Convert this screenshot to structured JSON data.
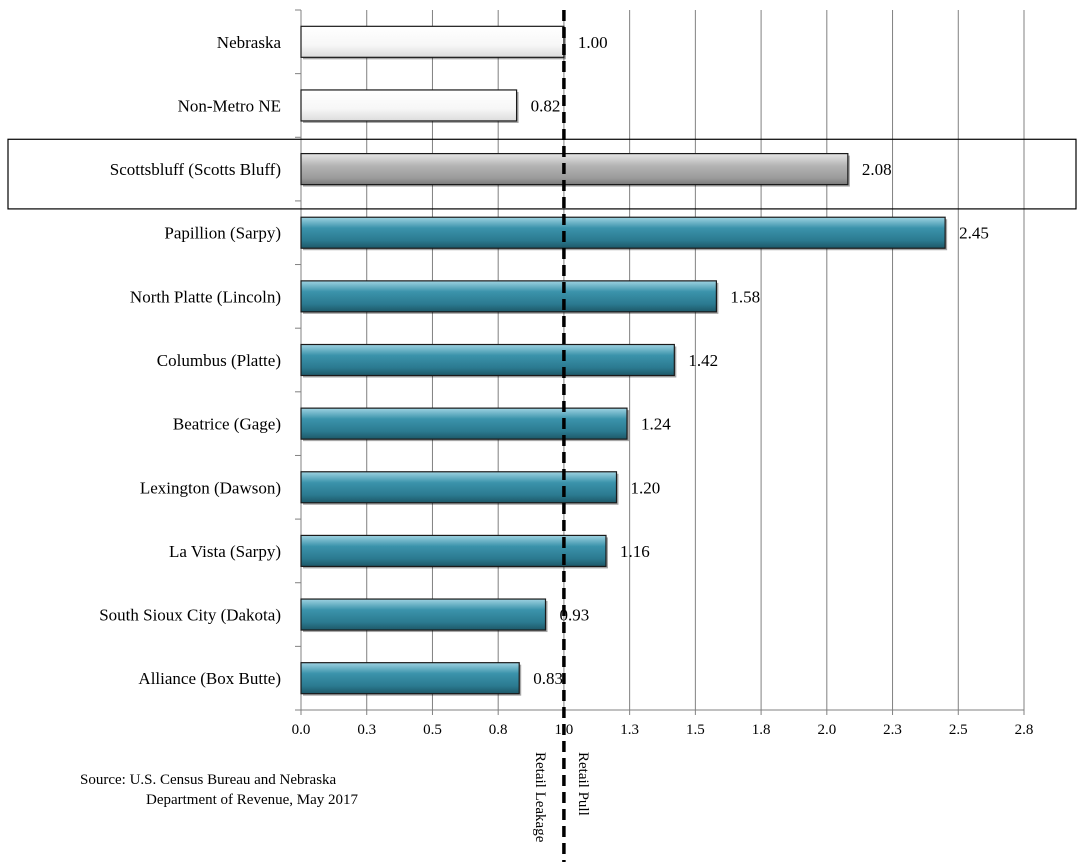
{
  "chart_data": {
    "type": "bar",
    "orientation": "horizontal",
    "categories": [
      "Nebraska",
      "Non-Metro NE",
      "Scottsbluff (Scotts Bluff)",
      "Papillion (Sarpy)",
      "North Platte (Lincoln)",
      "Columbus (Platte)",
      "Beatrice (Gage)",
      "Lexington (Dawson)",
      "La Vista (Sarpy)",
      "South Sioux City (Dakota)",
      "Alliance (Box Butte)"
    ],
    "values": [
      1.0,
      0.82,
      2.08,
      2.45,
      1.58,
      1.42,
      1.24,
      1.2,
      1.16,
      0.93,
      0.83
    ],
    "value_labels": [
      "1.00",
      "0.82",
      "2.08",
      "2.45",
      "1.58",
      "1.42",
      "1.24",
      "1.20",
      "1.16",
      "0.93",
      "0.83"
    ],
    "bar_groups": [
      "reference",
      "reference",
      "highlight",
      "city",
      "city",
      "city",
      "city",
      "city",
      "city",
      "city",
      "city"
    ],
    "highlighted_category": "Scottsbluff (Scotts Bluff)",
    "xlim": [
      0,
      2.75
    ],
    "x_ticks": [
      0,
      0.25,
      0.5,
      0.75,
      1.0,
      1.25,
      1.5,
      1.75,
      2.0,
      2.25,
      2.5,
      2.75
    ],
    "x_tick_labels": [
      "0.0",
      "0.3",
      "0.5",
      "0.8",
      "1.0",
      "1.3",
      "1.5",
      "1.8",
      "2.0",
      "2.3",
      "2.5",
      "2.8"
    ],
    "grid": "vertical",
    "reference_line": {
      "value": 1.0,
      "style": "dashed",
      "left_label": "Retail Leakage",
      "right_label": "Retail Pull"
    },
    "title": "",
    "xlabel": "",
    "ylabel": ""
  },
  "colors": {
    "reference": "#ffffff",
    "highlight": "#a6a6a6",
    "city": "#31859c",
    "gridline": "#808080",
    "bar_outline": "#1a1a1a"
  },
  "source": {
    "line1": "Source: U.S. Census Bureau and Nebraska",
    "line2": "Department of Revenue, May 2017"
  }
}
